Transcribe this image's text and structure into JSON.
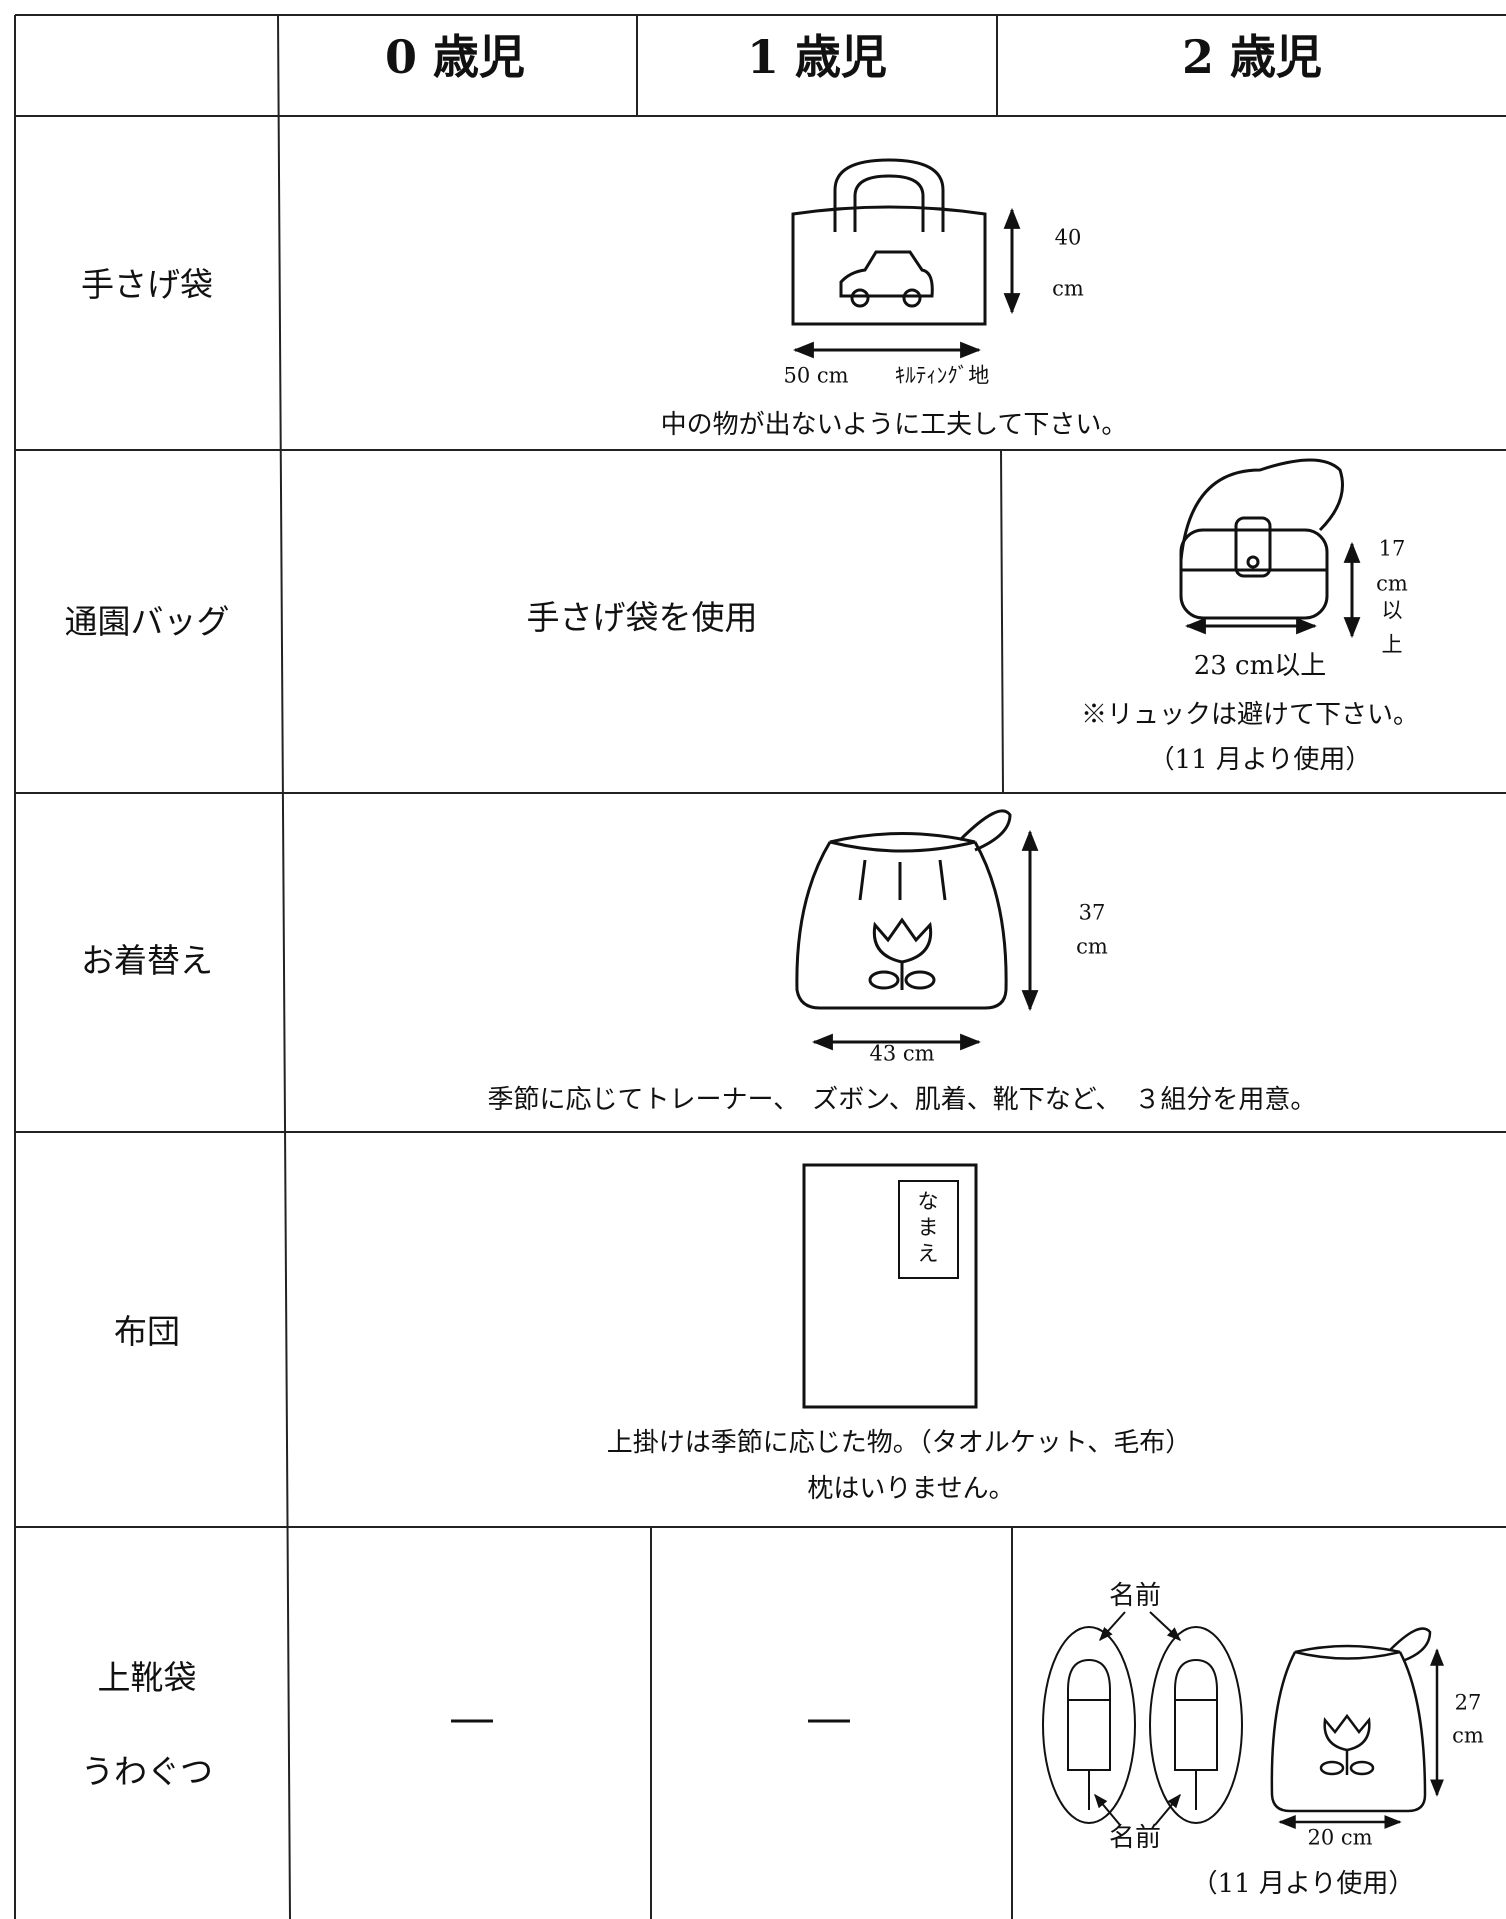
{
  "table": {
    "header": [
      "0 歳児",
      "1 歳児",
      "2 歳児"
    ],
    "rows": [
      {
        "label": "手さげ袋",
        "height": "40",
        "height_unit": "cm",
        "width": "50 cm",
        "material": "ｷﾙﾃｨﾝｸﾞ地",
        "note": "中の物が出ないように工夫して下さい。"
      },
      {
        "label": "通園バッグ",
        "cell_0_1": "手さげ袋を使用",
        "height": "17",
        "height_unit": "cm",
        "height_suffix_1": "以",
        "height_suffix_2": "上",
        "width": "23 cm以上",
        "note": "※リュックは避けて下さい。",
        "note_2": "（11 月より使用）"
      },
      {
        "label": "お着替え",
        "height": "37",
        "height_unit": "cm",
        "width": "43 cm",
        "note": "季節に応じてトレーナー、　ズボン、肌着、靴下など、　３組分を用意。"
      },
      {
        "label": "布団",
        "name_tag": [
          "な",
          "ま",
          "え"
        ],
        "note": "上掛けは季節に応じた物。（タオルケット、毛布）",
        "note_2": "枕はいりません。"
      },
      {
        "label": "上靴袋",
        "label_2": "うわぐつ",
        "cell_0": "—",
        "cell_1": "—",
        "name_top": "名前",
        "name_bottom": "名前",
        "height": "27",
        "height_unit": "cm",
        "width": "20 cm",
        "note": "（11 月より使用）"
      }
    ]
  }
}
